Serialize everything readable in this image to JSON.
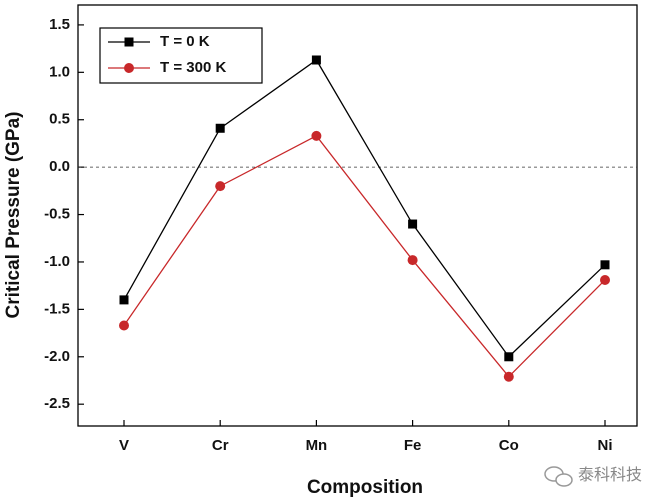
{
  "chart_data": {
    "type": "line",
    "x_label": "Composition",
    "y_label": "Critical Pressure (GPa)",
    "categories": [
      "V",
      "Cr",
      "Mn",
      "Fe",
      "Co",
      "Ni"
    ],
    "series": [
      {
        "name": "T = 0 K",
        "color": "#000000",
        "marker": "square",
        "values": [
          -1.4,
          0.41,
          1.13,
          -0.6,
          -2.0,
          -1.03
        ]
      },
      {
        "name": "T = 300 K",
        "color": "#c8282a",
        "marker": "circle",
        "values": [
          -1.67,
          -0.2,
          0.33,
          -0.98,
          -2.21,
          -1.19
        ]
      }
    ],
    "ylim": [
      -2.73,
      1.71
    ],
    "yticks": [
      1.5,
      {
        "value": 1.0,
        "label": "1.0"
      },
      0.5,
      {
        "value": 0.0,
        "label": "0.0"
      },
      -0.5,
      {
        "value": -1.0,
        "label": "-1.0"
      },
      -1.5,
      {
        "value": -2.0,
        "label": "-2.0"
      },
      -2.5
    ],
    "reference_line": 0,
    "legend": "upper left",
    "watermark": "泰科科技"
  }
}
